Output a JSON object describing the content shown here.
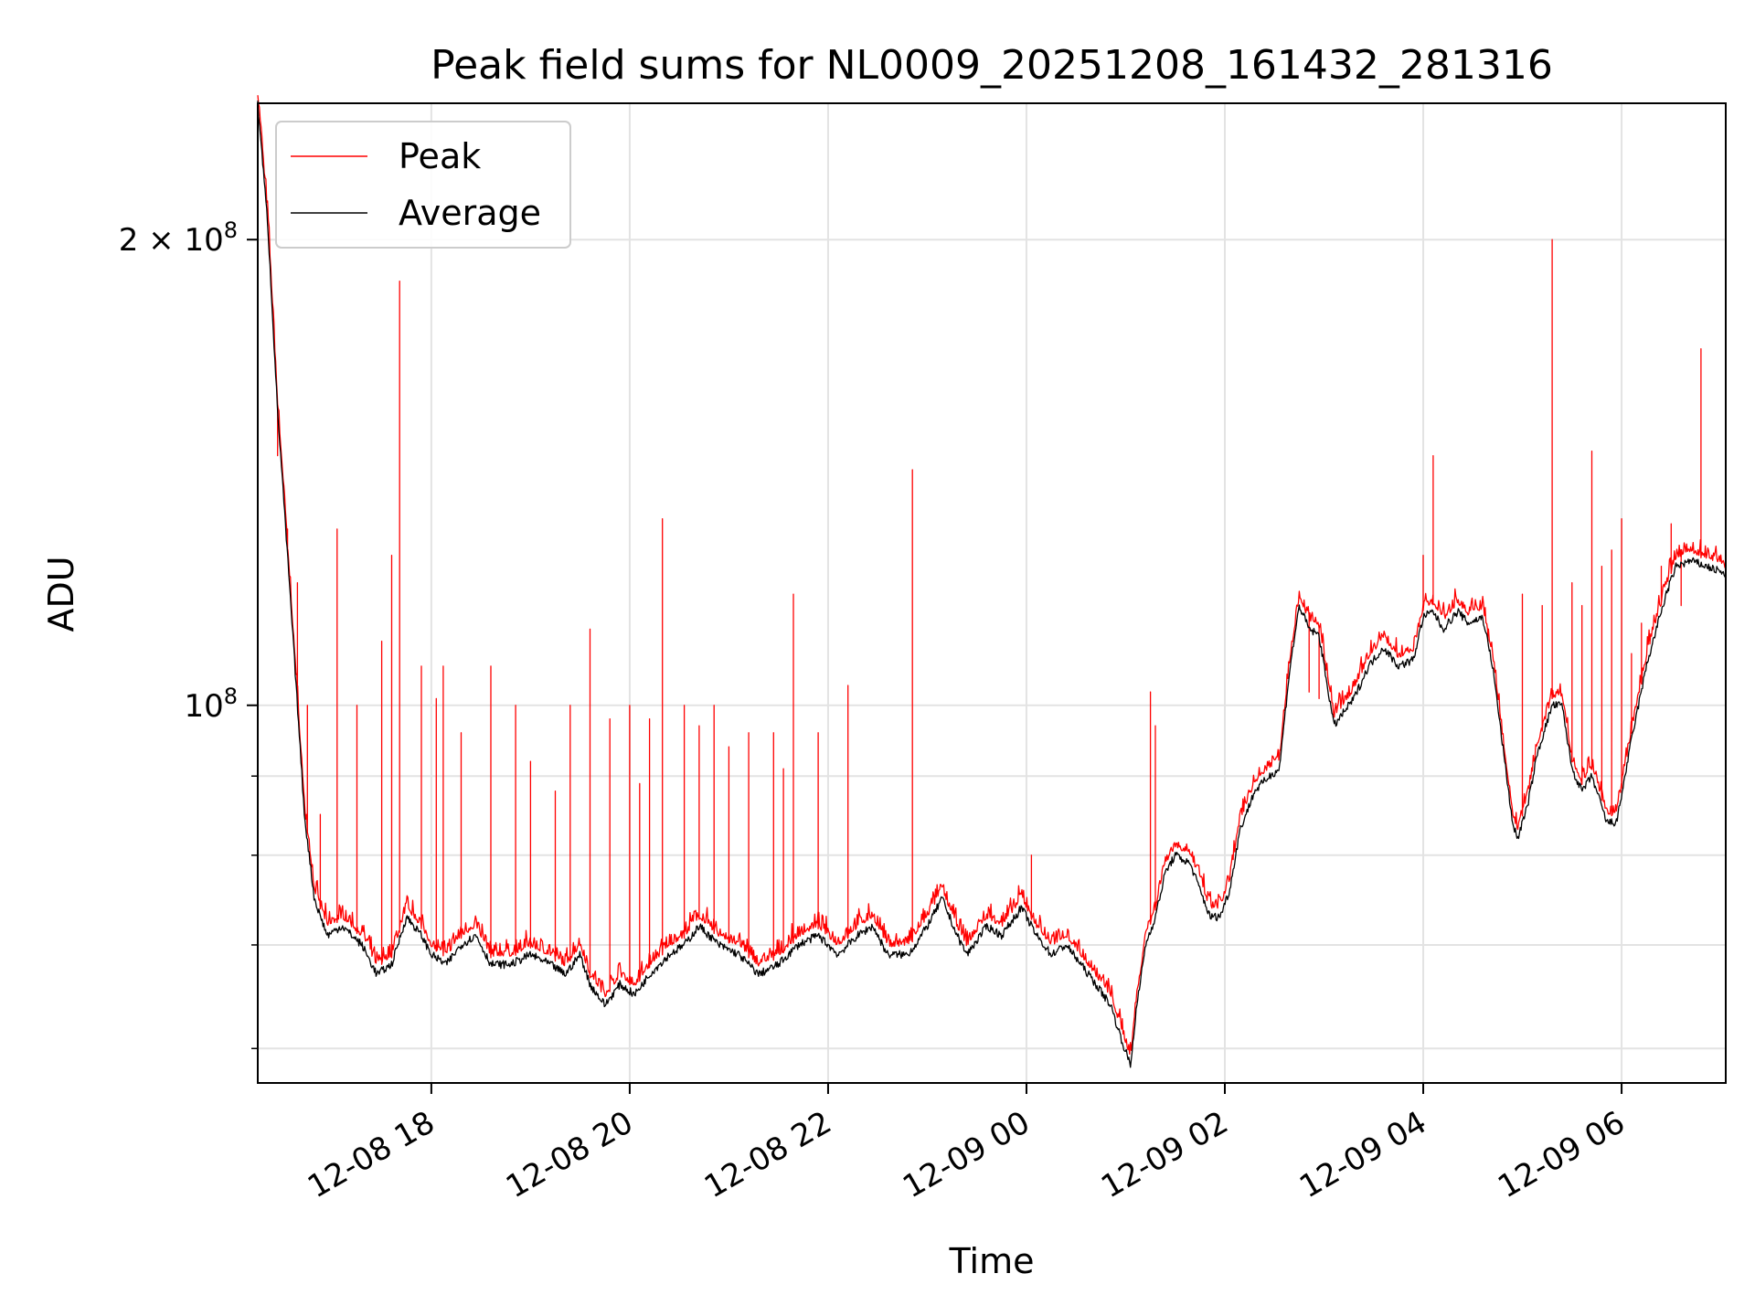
{
  "chart_data": {
    "type": "line",
    "title": "Peak field sums for NL0009_20251208_161432_281316",
    "xlabel": "Time",
    "ylabel": "ADU",
    "yscale": "log",
    "ylim": [
      57000000,
      245000000
    ],
    "xlim": [
      16.25,
      31.05
    ],
    "grid": true,
    "legend_position": "top-left",
    "x_ticks": [
      {
        "value": 18,
        "label": "12-08 18"
      },
      {
        "value": 20,
        "label": "12-08 20"
      },
      {
        "value": 22,
        "label": "12-08 22"
      },
      {
        "value": 24,
        "label": "12-09 00"
      },
      {
        "value": 26,
        "label": "12-09 02"
      },
      {
        "value": 28,
        "label": "12-09 04"
      },
      {
        "value": 30,
        "label": "12-09 06"
      }
    ],
    "y_ticks_major": [
      {
        "value": 100000000,
        "base": "10",
        "exp": "8",
        "mult": ""
      },
      {
        "value": 200000000,
        "base": "10",
        "exp": "8",
        "mult": "2 × "
      }
    ],
    "y_ticks_minor": [
      60000000,
      70000000,
      80000000,
      90000000
    ],
    "series": [
      {
        "name": "Peak",
        "color": "#ff0000",
        "spikes": [
          [
            16.45,
            145000000
          ],
          [
            16.55,
            130000000
          ],
          [
            16.65,
            120000000
          ],
          [
            16.75,
            100000000
          ],
          [
            16.88,
            85000000
          ],
          [
            17.05,
            130000000
          ],
          [
            17.25,
            100000000
          ],
          [
            17.5,
            110000000
          ],
          [
            17.6,
            125000000
          ],
          [
            17.68,
            188000000
          ],
          [
            17.9,
            106000000
          ],
          [
            18.05,
            101000000
          ],
          [
            18.12,
            106000000
          ],
          [
            18.3,
            96000000
          ],
          [
            18.6,
            106000000
          ],
          [
            18.85,
            100000000
          ],
          [
            19.0,
            92000000
          ],
          [
            19.25,
            88000000
          ],
          [
            19.4,
            100000000
          ],
          [
            19.6,
            112000000
          ],
          [
            19.8,
            98000000
          ],
          [
            20.0,
            100000000
          ],
          [
            20.1,
            89000000
          ],
          [
            20.2,
            98000000
          ],
          [
            20.33,
            132000000
          ],
          [
            20.55,
            100000000
          ],
          [
            20.7,
            97000000
          ],
          [
            20.85,
            100000000
          ],
          [
            21.0,
            94000000
          ],
          [
            21.2,
            96000000
          ],
          [
            21.45,
            96000000
          ],
          [
            21.55,
            91000000
          ],
          [
            21.65,
            118000000
          ],
          [
            21.9,
            96000000
          ],
          [
            22.2,
            103000000
          ],
          [
            22.85,
            142000000
          ],
          [
            24.05,
            80000000
          ],
          [
            25.25,
            102000000
          ],
          [
            25.3,
            97000000
          ],
          [
            26.85,
            102000000
          ],
          [
            26.95,
            101000000
          ],
          [
            28.0,
            125000000
          ],
          [
            28.1,
            145000000
          ],
          [
            28.65,
            110000000
          ],
          [
            29.0,
            118000000
          ],
          [
            29.2,
            116000000
          ],
          [
            29.3,
            200000000
          ],
          [
            29.5,
            120000000
          ],
          [
            29.6,
            116000000
          ],
          [
            29.7,
            146000000
          ],
          [
            29.8,
            123000000
          ],
          [
            29.9,
            126000000
          ],
          [
            30.0,
            132000000
          ],
          [
            30.1,
            108000000
          ],
          [
            30.2,
            113000000
          ],
          [
            30.4,
            123000000
          ],
          [
            30.5,
            131000000
          ],
          [
            30.6,
            116000000
          ],
          [
            30.8,
            170000000
          ]
        ]
      },
      {
        "name": "Average",
        "color": "#000000",
        "points": [
          [
            16.25,
            245000000
          ],
          [
            16.35,
            205000000
          ],
          [
            16.45,
            155000000
          ],
          [
            16.55,
            125000000
          ],
          [
            16.65,
            100000000
          ],
          [
            16.72,
            85000000
          ],
          [
            16.82,
            75000000
          ],
          [
            16.95,
            71000000
          ],
          [
            17.1,
            72000000
          ],
          [
            17.3,
            70000000
          ],
          [
            17.45,
            67000000
          ],
          [
            17.6,
            68000000
          ],
          [
            17.75,
            73000000
          ],
          [
            17.9,
            71000000
          ],
          [
            18.0,
            69000000
          ],
          [
            18.15,
            68000000
          ],
          [
            18.3,
            70000000
          ],
          [
            18.45,
            71000000
          ],
          [
            18.6,
            68000000
          ],
          [
            18.8,
            68000000
          ],
          [
            19.0,
            69000000
          ],
          [
            19.2,
            68000000
          ],
          [
            19.35,
            67000000
          ],
          [
            19.5,
            69000000
          ],
          [
            19.6,
            66000000
          ],
          [
            19.75,
            64000000
          ],
          [
            19.9,
            66000000
          ],
          [
            20.05,
            65000000
          ],
          [
            20.2,
            67000000
          ],
          [
            20.4,
            69000000
          ],
          [
            20.55,
            70000000
          ],
          [
            20.7,
            72000000
          ],
          [
            20.9,
            70000000
          ],
          [
            21.1,
            69000000
          ],
          [
            21.3,
            67000000
          ],
          [
            21.5,
            68000000
          ],
          [
            21.7,
            70000000
          ],
          [
            21.9,
            71000000
          ],
          [
            22.0,
            70000000
          ],
          [
            22.1,
            69000000
          ],
          [
            22.3,
            71000000
          ],
          [
            22.45,
            72000000
          ],
          [
            22.6,
            69000000
          ],
          [
            22.8,
            69000000
          ],
          [
            22.88,
            70000000
          ],
          [
            23.0,
            72000000
          ],
          [
            23.15,
            75000000
          ],
          [
            23.3,
            71000000
          ],
          [
            23.4,
            69000000
          ],
          [
            23.6,
            72000000
          ],
          [
            23.75,
            71000000
          ],
          [
            23.95,
            74000000
          ],
          [
            24.1,
            71000000
          ],
          [
            24.25,
            69000000
          ],
          [
            24.4,
            70000000
          ],
          [
            24.55,
            68000000
          ],
          [
            24.7,
            66000000
          ],
          [
            24.85,
            64000000
          ],
          [
            24.95,
            61000000
          ],
          [
            25.05,
            58500000
          ],
          [
            25.1,
            63000000
          ],
          [
            25.2,
            70000000
          ],
          [
            25.3,
            73000000
          ],
          [
            25.4,
            78000000
          ],
          [
            25.5,
            80000000
          ],
          [
            25.65,
            79000000
          ],
          [
            25.75,
            76000000
          ],
          [
            25.85,
            73000000
          ],
          [
            25.95,
            73000000
          ],
          [
            26.05,
            76000000
          ],
          [
            26.15,
            83000000
          ],
          [
            26.3,
            88000000
          ],
          [
            26.45,
            90000000
          ],
          [
            26.55,
            91000000
          ],
          [
            26.65,
            105000000
          ],
          [
            26.75,
            116000000
          ],
          [
            26.85,
            112000000
          ],
          [
            26.95,
            111000000
          ],
          [
            27.1,
            97000000
          ],
          [
            27.3,
            101000000
          ],
          [
            27.45,
            106000000
          ],
          [
            27.6,
            109000000
          ],
          [
            27.75,
            106000000
          ],
          [
            27.9,
            107000000
          ],
          [
            28.0,
            114000000
          ],
          [
            28.1,
            115000000
          ],
          [
            28.2,
            112000000
          ],
          [
            28.35,
            115000000
          ],
          [
            28.45,
            113000000
          ],
          [
            28.6,
            114000000
          ],
          [
            28.7,
            106000000
          ],
          [
            28.75,
            100000000
          ],
          [
            28.9,
            84000000
          ],
          [
            28.95,
            82000000
          ],
          [
            29.05,
            86000000
          ],
          [
            29.15,
            93000000
          ],
          [
            29.3,
            100000000
          ],
          [
            29.4,
            100000000
          ],
          [
            29.5,
            91000000
          ],
          [
            29.6,
            88000000
          ],
          [
            29.7,
            90000000
          ],
          [
            29.85,
            84000000
          ],
          [
            29.95,
            84000000
          ],
          [
            30.1,
            95000000
          ],
          [
            30.25,
            106000000
          ],
          [
            30.35,
            112000000
          ],
          [
            30.45,
            118000000
          ],
          [
            30.55,
            123000000
          ],
          [
            30.7,
            124000000
          ],
          [
            30.85,
            123000000
          ],
          [
            31.0,
            122000000
          ],
          [
            31.05,
            121000000
          ]
        ]
      }
    ]
  }
}
